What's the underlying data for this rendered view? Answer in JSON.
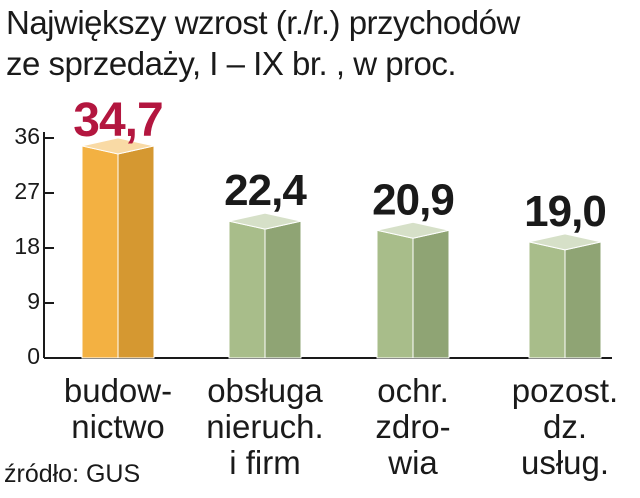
{
  "title_lines": [
    "Największy wzrost (r./r.) przychodów",
    "ze sprzedaży, I – IX br. , w proc."
  ],
  "source": "źródło: GUS",
  "colors": {
    "highlight_bar": "#f2ad38",
    "bar": "#a3ba84",
    "highlight_label": "#b3163f",
    "label": "#1a1a1a",
    "axis": "#1a1a1a"
  },
  "chart_data": {
    "type": "bar",
    "title": "Największy wzrost (r./r.) przychodów ze sprzedaży, I – IX br. , w proc.",
    "categories": [
      [
        "budow-",
        "nictwo"
      ],
      [
        "obsługa",
        "nieruch.",
        "i firm"
      ],
      [
        "ochr.",
        "zdro-",
        "wia"
      ],
      [
        "pozost.",
        "dz.",
        "usług."
      ]
    ],
    "values": [
      34.7,
      22.4,
      20.9,
      19.0
    ],
    "value_labels": [
      "34,7",
      "22,4",
      "20,9",
      "19,0"
    ],
    "highlight_index": 0,
    "yticks": [
      "0",
      "9",
      "18",
      "27",
      "36"
    ],
    "ylim": [
      0,
      36
    ],
    "grid": false,
    "legend": "none"
  }
}
